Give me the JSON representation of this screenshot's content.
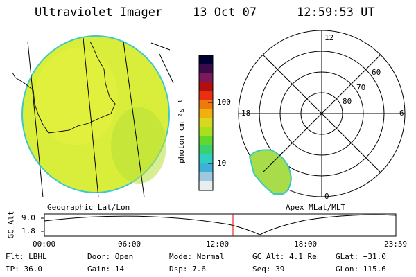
{
  "header": {
    "instrument": "Ultraviolet Imager",
    "date": "13 Oct 07",
    "time": "12:59:53 UT"
  },
  "colorbar": {
    "unit_label": "photon cm⁻²s⁻¹",
    "tick_high": "100",
    "tick_low": "10",
    "colors": [
      "#000033",
      "#3a0a4a",
      "#7a1a5a",
      "#b01010",
      "#e83010",
      "#f07810",
      "#f0b010",
      "#d8d820",
      "#a8e020",
      "#60d830",
      "#38d070",
      "#30d0c0",
      "#40b0d8",
      "#9cc8e0",
      "#e8eef0"
    ]
  },
  "geo_panel": {
    "label": "Geographic Lat/Lon",
    "fill": "#d8ee3a",
    "border": "#40c8c8"
  },
  "polar_panel": {
    "label": "Apex MLat/MLT",
    "mlt": {
      "top": "12",
      "left": "18",
      "right": "6",
      "bottom": "0"
    },
    "lat": [
      "60",
      "70",
      "80"
    ]
  },
  "altitude_plot": {
    "axis_label": "GC Alt",
    "yticks": [
      "9.0",
      "1.8"
    ],
    "xticks": [
      "00:00",
      "06:00",
      "12:00",
      "18:00",
      "23:59"
    ],
    "current_marker_color": "#e00000"
  },
  "footer": {
    "flt": "Flt: LBHL",
    "ip": "IP: 36.0",
    "door": "Door: Open",
    "gain": "Gain: 14",
    "mode": "Mode: Normal",
    "dsp": "Dsp:   7.6",
    "gcalt": "GC Alt: 4.1 Re",
    "seq": "Seq: 39",
    "glat": "GLat: −31.0",
    "glon": "GLon: 115.6"
  }
}
